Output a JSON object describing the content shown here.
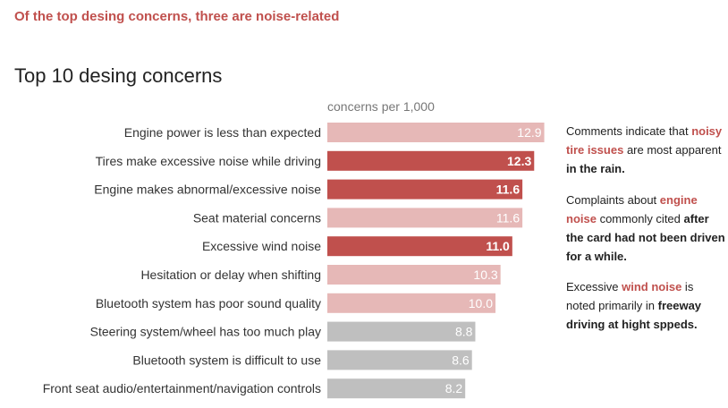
{
  "headline": "Of the top desing concerns, three are noise-related",
  "colors": {
    "noise": "#c0504d",
    "pink": "#e6b8b7",
    "gray": "#bfbfbf",
    "accent_text": "#c0504d"
  },
  "chart_data": {
    "type": "bar",
    "orientation": "horizontal",
    "title": "Top 10 desing concerns",
    "unit_label": "concerns per 1,000",
    "grid": false,
    "xlim": [
      0,
      14.2
    ],
    "categories": [
      "Engine power is less than expected",
      "Tires make excessive noise while driving",
      "Engine makes abnormal/excessive noise",
      "Seat material concerns",
      "Excessive wind noise",
      "Hesitation or delay when shifting",
      "Bluetooth system has poor sound quality",
      "Steering system/wheel has too much play",
      "Bluetooth system is difficult to use",
      "Front seat audio/entertainment/navigation controls"
    ],
    "values": [
      12.9,
      12.3,
      11.6,
      11.6,
      11.0,
      10.3,
      10.0,
      8.8,
      8.6,
      8.2
    ],
    "labels": [
      "12.9",
      "12.3",
      "11.6",
      "11.6",
      "11.0",
      "10.3",
      "10.0",
      "8.8",
      "8.6",
      "8.2"
    ],
    "color_groups": [
      "pink",
      "noise",
      "noise",
      "pink",
      "noise",
      "pink",
      "pink",
      "gray",
      "gray",
      "gray"
    ]
  },
  "annotations": [
    {
      "parts": [
        {
          "text": "Comments indicate that ",
          "style": "normal"
        },
        {
          "text": "noisy tire issues",
          "style": "highlight"
        },
        {
          "text": " are most apparent ",
          "style": "normal"
        },
        {
          "text": " in the rain.",
          "style": "bold"
        }
      ]
    },
    {
      "parts": [
        {
          "text": "Complaints about ",
          "style": "normal"
        },
        {
          "text": " engine noise",
          "style": "highlight"
        },
        {
          "text": " commonly cited ",
          "style": "normal"
        },
        {
          "text": "after the card had not been driven for a while.",
          "style": "bold"
        }
      ]
    },
    {
      "parts": [
        {
          "text": "Excessive ",
          "style": "normal"
        },
        {
          "text": "wind noise",
          "style": "highlight"
        },
        {
          "text": " is noted primarily in ",
          "style": "normal"
        },
        {
          "text": "freeway driving at hight sppeds.",
          "style": "bold"
        }
      ]
    }
  ]
}
